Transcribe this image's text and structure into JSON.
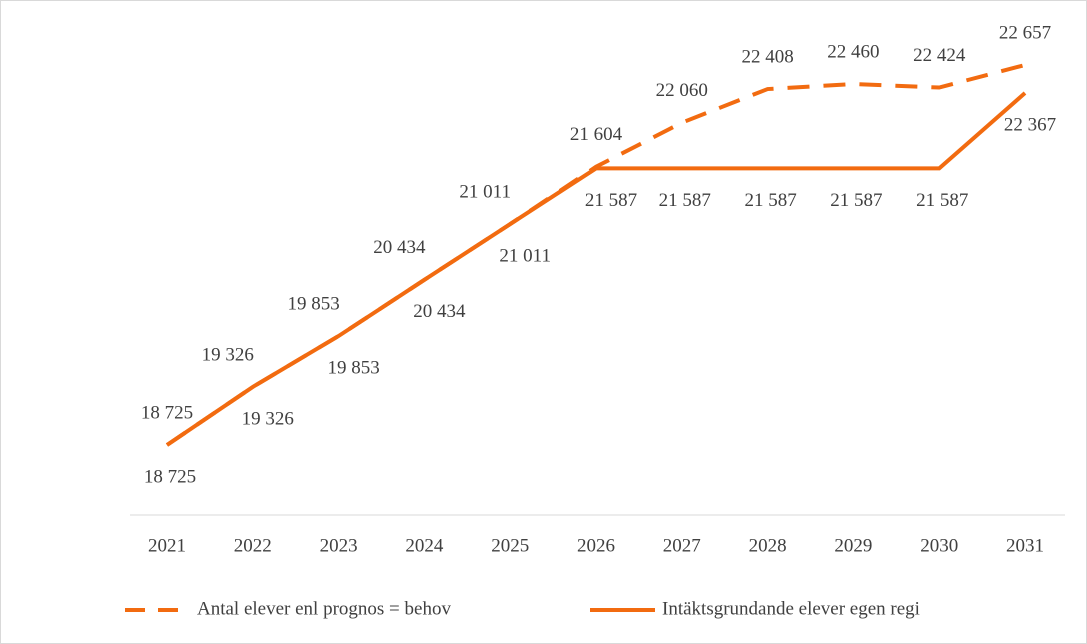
{
  "chart_data": {
    "type": "line",
    "categories": [
      "2021",
      "2022",
      "2023",
      "2024",
      "2025",
      "2026",
      "2027",
      "2028",
      "2029",
      "2030",
      "2031"
    ],
    "series": [
      {
        "name": "Antal elever enl prognos = behov",
        "color": "#f26b10",
        "line_style": "dashed",
        "values": [
          18725,
          19326,
          19853,
          20434,
          21011,
          21604,
          22060,
          22408,
          22460,
          22424,
          22657
        ],
        "value_labels": [
          "18 725",
          "19 326",
          "19 853",
          "20 434",
          "21 011",
          "21 604",
          "22 060",
          "22 408",
          "22 460",
          "22 424",
          "22 657"
        ]
      },
      {
        "name": "Intäktsgrundande elever egen regi",
        "color": "#f26b10",
        "line_style": "solid",
        "values": [
          18725,
          19326,
          19853,
          20434,
          21011,
          21587,
          21587,
          21587,
          21587,
          21587,
          22367
        ],
        "value_labels": [
          "18 725",
          "19 326",
          "19 853",
          "20 434",
          "21 011",
          "21 587",
          "21 587",
          "21 587",
          "21 587",
          "21 587",
          "22 367"
        ]
      }
    ],
    "legend": "bottom"
  }
}
